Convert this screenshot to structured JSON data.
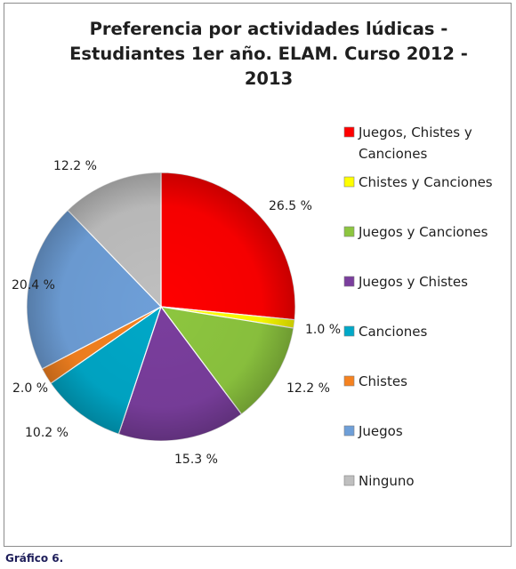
{
  "chart_data": {
    "type": "pie",
    "title_lines": [
      "Preferencia por actividades lúdicas -",
      "Estudiantes 1er año. ELAM. Curso 2012 -",
      "2013"
    ],
    "categories": [
      "Juegos, Chistes y Canciones",
      "Chistes y Canciones",
      "Juegos y Canciones",
      "Juegos y Chistes",
      "Canciones",
      "Chistes",
      "Juegos",
      "Ninguno"
    ],
    "legend_labels": [
      [
        "Juegos, Chistes y",
        "Canciones"
      ],
      [
        "Chistes y Canciones"
      ],
      [
        "Juegos y Canciones"
      ],
      [
        "Juegos y Chistes"
      ],
      [
        "Canciones"
      ],
      [
        "Chistes"
      ],
      [
        "Juegos"
      ],
      [
        "Ninguno"
      ]
    ],
    "values": [
      26.5,
      1.0,
      12.2,
      15.3,
      10.2,
      2.0,
      20.4,
      12.2
    ],
    "data_labels": [
      "26.5 %",
      "1.0 %",
      "12.2 %",
      "15.3 %",
      "10.2 %",
      "2.0 %",
      "20.4 %",
      "12.2 %"
    ],
    "colors": [
      "#ff0000",
      "#ffff00",
      "#8dc63f",
      "#7a3e9d",
      "#00a8c8",
      "#f58220",
      "#6e9fd8",
      "#bfbfbf"
    ],
    "legend_position": "right",
    "start_angle": "12 o'clock",
    "direction": "clockwise"
  },
  "caption": "Gráfico 6."
}
